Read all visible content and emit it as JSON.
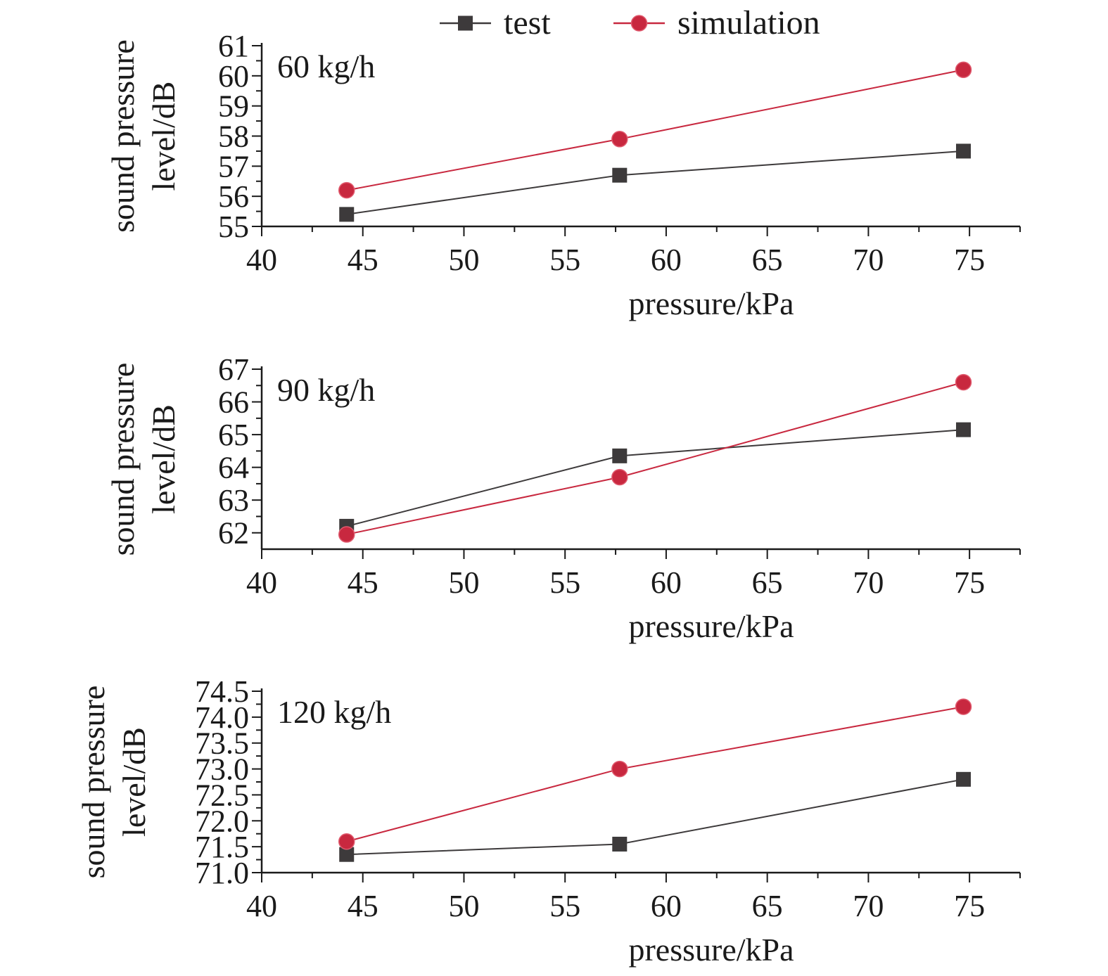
{
  "legend": [
    {
      "name": "test",
      "color": "#3d3a3b",
      "marker": "square"
    },
    {
      "name": "simulation",
      "color": "#c8283f",
      "marker": "circle"
    }
  ],
  "chart_data": [
    {
      "type": "line",
      "annotation": "60 kg/h",
      "xlabel": "pressure/kPa",
      "ylabel": [
        "sound pressure",
        "level/dB"
      ],
      "xlim": [
        40,
        77.5
      ],
      "ylim": [
        55,
        61
      ],
      "xticks": [
        "40",
        "45",
        "50",
        "55",
        "60",
        "65",
        "70",
        "75"
      ],
      "yticks": [
        "55",
        "56",
        "57",
        "58",
        "59",
        "60",
        "61"
      ],
      "x": [
        44.2,
        57.7,
        74.7
      ],
      "series": [
        {
          "name": "test",
          "values": [
            55.4,
            56.7,
            57.5
          ]
        },
        {
          "name": "simulation",
          "values": [
            56.2,
            57.9,
            60.2
          ]
        }
      ],
      "grid": false
    },
    {
      "type": "line",
      "annotation": "90 kg/h",
      "xlabel": "pressure/kPa",
      "ylabel": [
        "sound pressure",
        "level/dB"
      ],
      "xlim": [
        40,
        77.5
      ],
      "ylim": [
        61.5,
        67
      ],
      "xticks": [
        "40",
        "45",
        "50",
        "55",
        "60",
        "65",
        "70",
        "75"
      ],
      "yticks": [
        "62",
        "63",
        "64",
        "65",
        "66",
        "67"
      ],
      "x": [
        44.2,
        57.7,
        74.7
      ],
      "series": [
        {
          "name": "test",
          "values": [
            62.2,
            64.35,
            65.15
          ]
        },
        {
          "name": "simulation",
          "values": [
            61.95,
            63.7,
            66.6
          ]
        }
      ],
      "grid": false
    },
    {
      "type": "line",
      "annotation": "120 kg/h",
      "xlabel": "pressure/kPa",
      "ylabel": [
        "sound pressure",
        "level/dB"
      ],
      "xlim": [
        40,
        77.5
      ],
      "ylim": [
        71.0,
        74.5
      ],
      "xticks": [
        "40",
        "45",
        "50",
        "55",
        "60",
        "65",
        "70",
        "75"
      ],
      "yticks": [
        "71.0",
        "71.5",
        "72.0",
        "72.5",
        "73.0",
        "73.5",
        "74.0",
        "74.5"
      ],
      "x": [
        44.2,
        57.7,
        74.7
      ],
      "series": [
        {
          "name": "test",
          "values": [
            71.35,
            71.55,
            72.8
          ]
        },
        {
          "name": "simulation",
          "values": [
            71.6,
            73.0,
            74.2
          ]
        }
      ],
      "grid": false
    }
  ]
}
